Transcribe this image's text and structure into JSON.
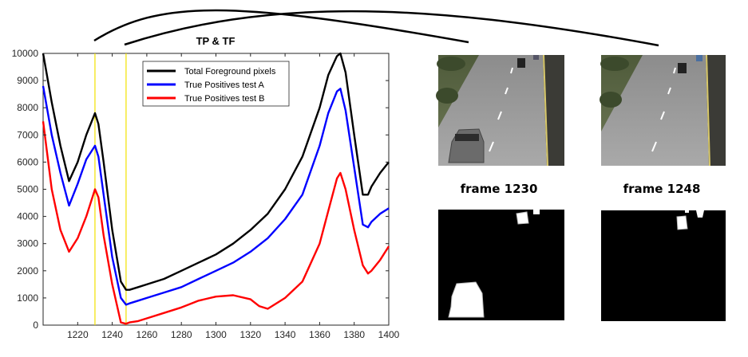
{
  "chart_data": {
    "type": "line",
    "title": "TP & TF",
    "xlabel": "",
    "ylabel": "",
    "xlim": [
      1200,
      1400
    ],
    "ylim": [
      0,
      10000
    ],
    "xticks": [
      1220,
      1240,
      1260,
      1280,
      1300,
      1320,
      1340,
      1360,
      1380,
      1400
    ],
    "yticks": [
      0,
      1000,
      2000,
      3000,
      4000,
      5000,
      6000,
      7000,
      8000,
      9000,
      10000
    ],
    "grid": false,
    "legend_position": "top",
    "markers": [
      {
        "x": 1230,
        "color": "#f2e200"
      },
      {
        "x": 1248,
        "color": "#f2e200"
      }
    ],
    "series": [
      {
        "name": "Total Foreground pixels",
        "color": "#000000",
        "x": [
          1200,
          1205,
          1210,
          1215,
          1220,
          1225,
          1230,
          1232,
          1235,
          1240,
          1245,
          1248,
          1250,
          1255,
          1260,
          1270,
          1280,
          1290,
          1300,
          1310,
          1320,
          1330,
          1340,
          1350,
          1360,
          1365,
          1370,
          1372,
          1375,
          1380,
          1385,
          1388,
          1390,
          1395,
          1400
        ],
        "values": [
          10000,
          8200,
          6600,
          5300,
          6000,
          7000,
          7800,
          7400,
          6000,
          3500,
          1600,
          1300,
          1300,
          1400,
          1500,
          1700,
          2000,
          2300,
          2600,
          3000,
          3500,
          4100,
          5000,
          6200,
          8000,
          9200,
          9900,
          10000,
          9300,
          7000,
          4800,
          4800,
          5100,
          5600,
          6000
        ]
      },
      {
        "name": "True Positives test A",
        "color": "#0000ff",
        "x": [
          1200,
          1205,
          1210,
          1215,
          1220,
          1225,
          1230,
          1232,
          1235,
          1240,
          1245,
          1248,
          1250,
          1255,
          1260,
          1270,
          1280,
          1290,
          1300,
          1310,
          1320,
          1330,
          1340,
          1350,
          1360,
          1365,
          1370,
          1372,
          1375,
          1380,
          1385,
          1388,
          1390,
          1395,
          1400
        ],
        "values": [
          8800,
          7000,
          5600,
          4400,
          5200,
          6100,
          6600,
          6200,
          4800,
          2500,
          1000,
          750,
          800,
          900,
          1000,
          1200,
          1400,
          1700,
          2000,
          2300,
          2700,
          3200,
          3900,
          4800,
          6600,
          7800,
          8600,
          8700,
          7900,
          5800,
          3700,
          3600,
          3800,
          4100,
          4300
        ]
      },
      {
        "name": "True Positives test B",
        "color": "#ff0000",
        "x": [
          1200,
          1205,
          1210,
          1215,
          1220,
          1225,
          1230,
          1232,
          1235,
          1240,
          1245,
          1248,
          1250,
          1255,
          1260,
          1270,
          1280,
          1290,
          1300,
          1310,
          1320,
          1325,
          1330,
          1340,
          1350,
          1360,
          1365,
          1370,
          1372,
          1375,
          1380,
          1385,
          1388,
          1390,
          1395,
          1400
        ],
        "values": [
          7500,
          5000,
          3500,
          2700,
          3200,
          4000,
          5000,
          4700,
          3300,
          1500,
          100,
          50,
          100,
          150,
          250,
          450,
          650,
          900,
          1050,
          1100,
          950,
          700,
          600,
          1000,
          1600,
          3000,
          4200,
          5400,
          5600,
          5000,
          3500,
          2200,
          1900,
          2000,
          2400,
          2900
        ]
      }
    ]
  },
  "frames": [
    {
      "label": "frame 1230"
    },
    {
      "label": "frame 1248"
    }
  ]
}
